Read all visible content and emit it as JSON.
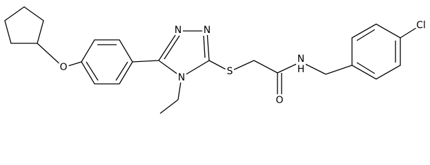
{
  "atoms": [
    {
      "label": "O"
    },
    {
      "label": "N"
    },
    {
      "label": "N"
    },
    {
      "label": "N"
    },
    {
      "label": "S"
    },
    {
      "label": "O"
    },
    {
      "label": "N"
    },
    {
      "label": "H"
    },
    {
      "label": "Cl"
    }
  ]
}
